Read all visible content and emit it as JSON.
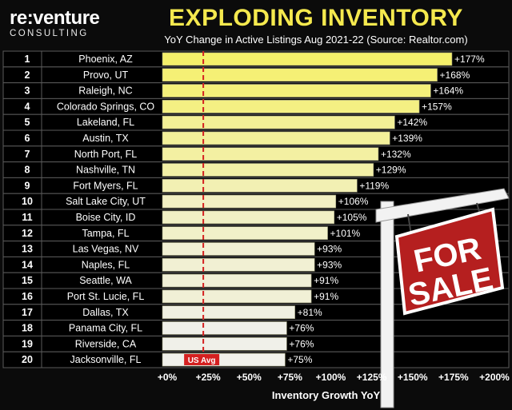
{
  "brand": {
    "name": "re:venture",
    "sub": "CONSULTING"
  },
  "header": {
    "title": "EXPLODING INVENTORY",
    "subtitle": "YoY Change in Active Listings Aug 2021-22 (Source: Realtor.com)"
  },
  "sign": {
    "line1": "FOR",
    "line2": "SALE"
  },
  "colors": {
    "bar_high": "#f5f06a",
    "bar_low": "#f0f0ea",
    "avg_line": "#d42020",
    "sign_red": "#b51f1f"
  },
  "chart_data": {
    "type": "bar",
    "orientation": "horizontal",
    "title": "EXPLODING INVENTORY",
    "xlabel": "Inventory Growth YoY",
    "ylabel": "",
    "xlim": [
      0,
      200
    ],
    "x_ticks": [
      "+0%",
      "+25%",
      "+50%",
      "+75%",
      "+100%",
      "+125%",
      "+150%",
      "+175%",
      "+200%"
    ],
    "x_tick_values": [
      0,
      25,
      50,
      75,
      100,
      125,
      150,
      175,
      200
    ],
    "reference_line": {
      "label": "US Avg",
      "value": 25
    },
    "ranks": [
      "1",
      "2",
      "3",
      "4",
      "5",
      "6",
      "7",
      "8",
      "9",
      "10",
      "11",
      "12",
      "13",
      "14",
      "15",
      "16",
      "17",
      "18",
      "19",
      "20"
    ],
    "categories": [
      "Phoenix, AZ",
      "Provo, UT",
      "Raleigh, NC",
      "Colorado Springs, CO",
      "Lakeland, FL",
      "Austin, TX",
      "North Port, FL",
      "Nashville, TN",
      "Fort Myers, FL",
      "Salt Lake City, UT",
      "Boise City, ID",
      "Tampa, FL",
      "Las Vegas, NV",
      "Naples, FL",
      "Seattle, WA",
      "Port St. Lucie, FL",
      "Dallas, TX",
      "Panama City, FL",
      "Riverside, CA",
      "Jacksonville, FL"
    ],
    "values": [
      177,
      168,
      164,
      157,
      142,
      139,
      132,
      129,
      119,
      106,
      105,
      101,
      93,
      93,
      91,
      91,
      81,
      76,
      76,
      75
    ],
    "value_labels": [
      "+177%",
      "+168%",
      "+164%",
      "+157%",
      "+142%",
      "+139%",
      "+132%",
      "+129%",
      "+119%",
      "+106%",
      "+105%",
      "+101%",
      "+93%",
      "+93%",
      "+91%",
      "+91%",
      "+81%",
      "+76%",
      "+76%",
      "+75%"
    ]
  }
}
